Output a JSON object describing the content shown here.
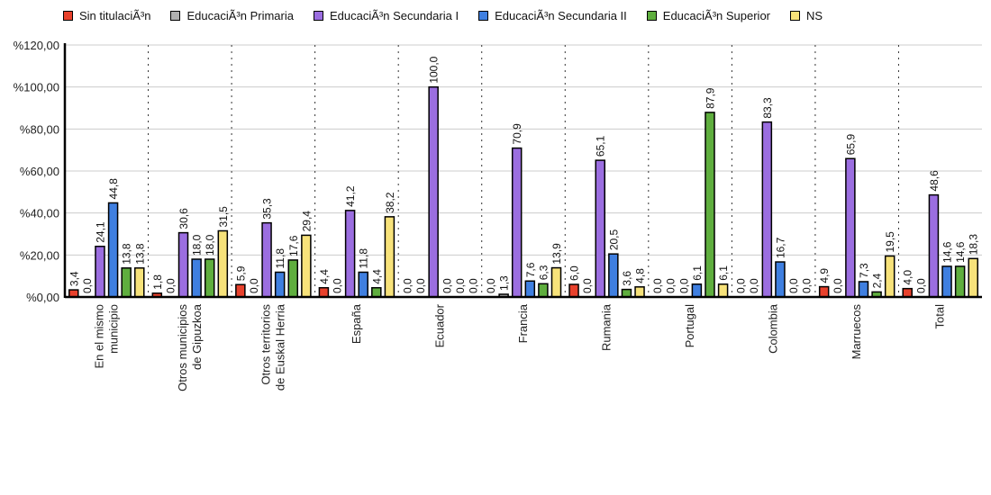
{
  "chart_data": {
    "type": "bar",
    "title": "",
    "xlabel": "",
    "ylabel": "",
    "ylim": [
      0,
      120
    ],
    "yticks": [
      "%0,00",
      "%20,00",
      "%40,00",
      "%60,00",
      "%80,00",
      "%100,00",
      "%120,00"
    ],
    "grid": true,
    "legend_position": "right",
    "categories": [
      "En el mismo municipio",
      "Otros municipios de Gipuzkoa",
      "Otros territorios de Euskal Herria",
      "España",
      "Ecuador",
      "Francia",
      "Rumania",
      "Portugal",
      "Colombia",
      "Marruecos",
      "Total"
    ],
    "series": [
      {
        "name": "Sin titulaciÃ³n",
        "color": "#e8412c",
        "values": [
          3.4,
          1.8,
          5.9,
          4.4,
          0.0,
          0.0,
          6.0,
          0.0,
          0.0,
          4.9,
          4.0
        ]
      },
      {
        "name": "EducaciÃ³n Primaria",
        "color": "#b0b0b0",
        "values": [
          0.0,
          0.0,
          0.0,
          0.0,
          0.0,
          1.3,
          0.0,
          0.0,
          0.0,
          0.0,
          0.0
        ]
      },
      {
        "name": "EducaciÃ³n Secundaria I",
        "color": "#9b6ee0",
        "values": [
          24.1,
          30.6,
          35.3,
          41.2,
          100.0,
          70.9,
          65.1,
          0.0,
          83.3,
          65.9,
          48.6
        ]
      },
      {
        "name": "EducaciÃ³n Secundaria II",
        "color": "#3f7fe0",
        "values": [
          44.8,
          18.0,
          11.8,
          11.8,
          0.0,
          7.6,
          20.5,
          6.1,
          16.7,
          7.3,
          14.6
        ]
      },
      {
        "name": "EducaciÃ³n Superior",
        "color": "#5fae3e",
        "values": [
          13.8,
          18.0,
          17.6,
          4.4,
          0.0,
          6.3,
          3.6,
          87.9,
          0.0,
          2.4,
          14.6
        ]
      },
      {
        "name": "NS",
        "color": "#f7e27a",
        "values": [
          13.8,
          31.5,
          29.4,
          38.2,
          0.0,
          13.9,
          4.8,
          6.1,
          0.0,
          19.5,
          18.3
        ]
      }
    ]
  }
}
